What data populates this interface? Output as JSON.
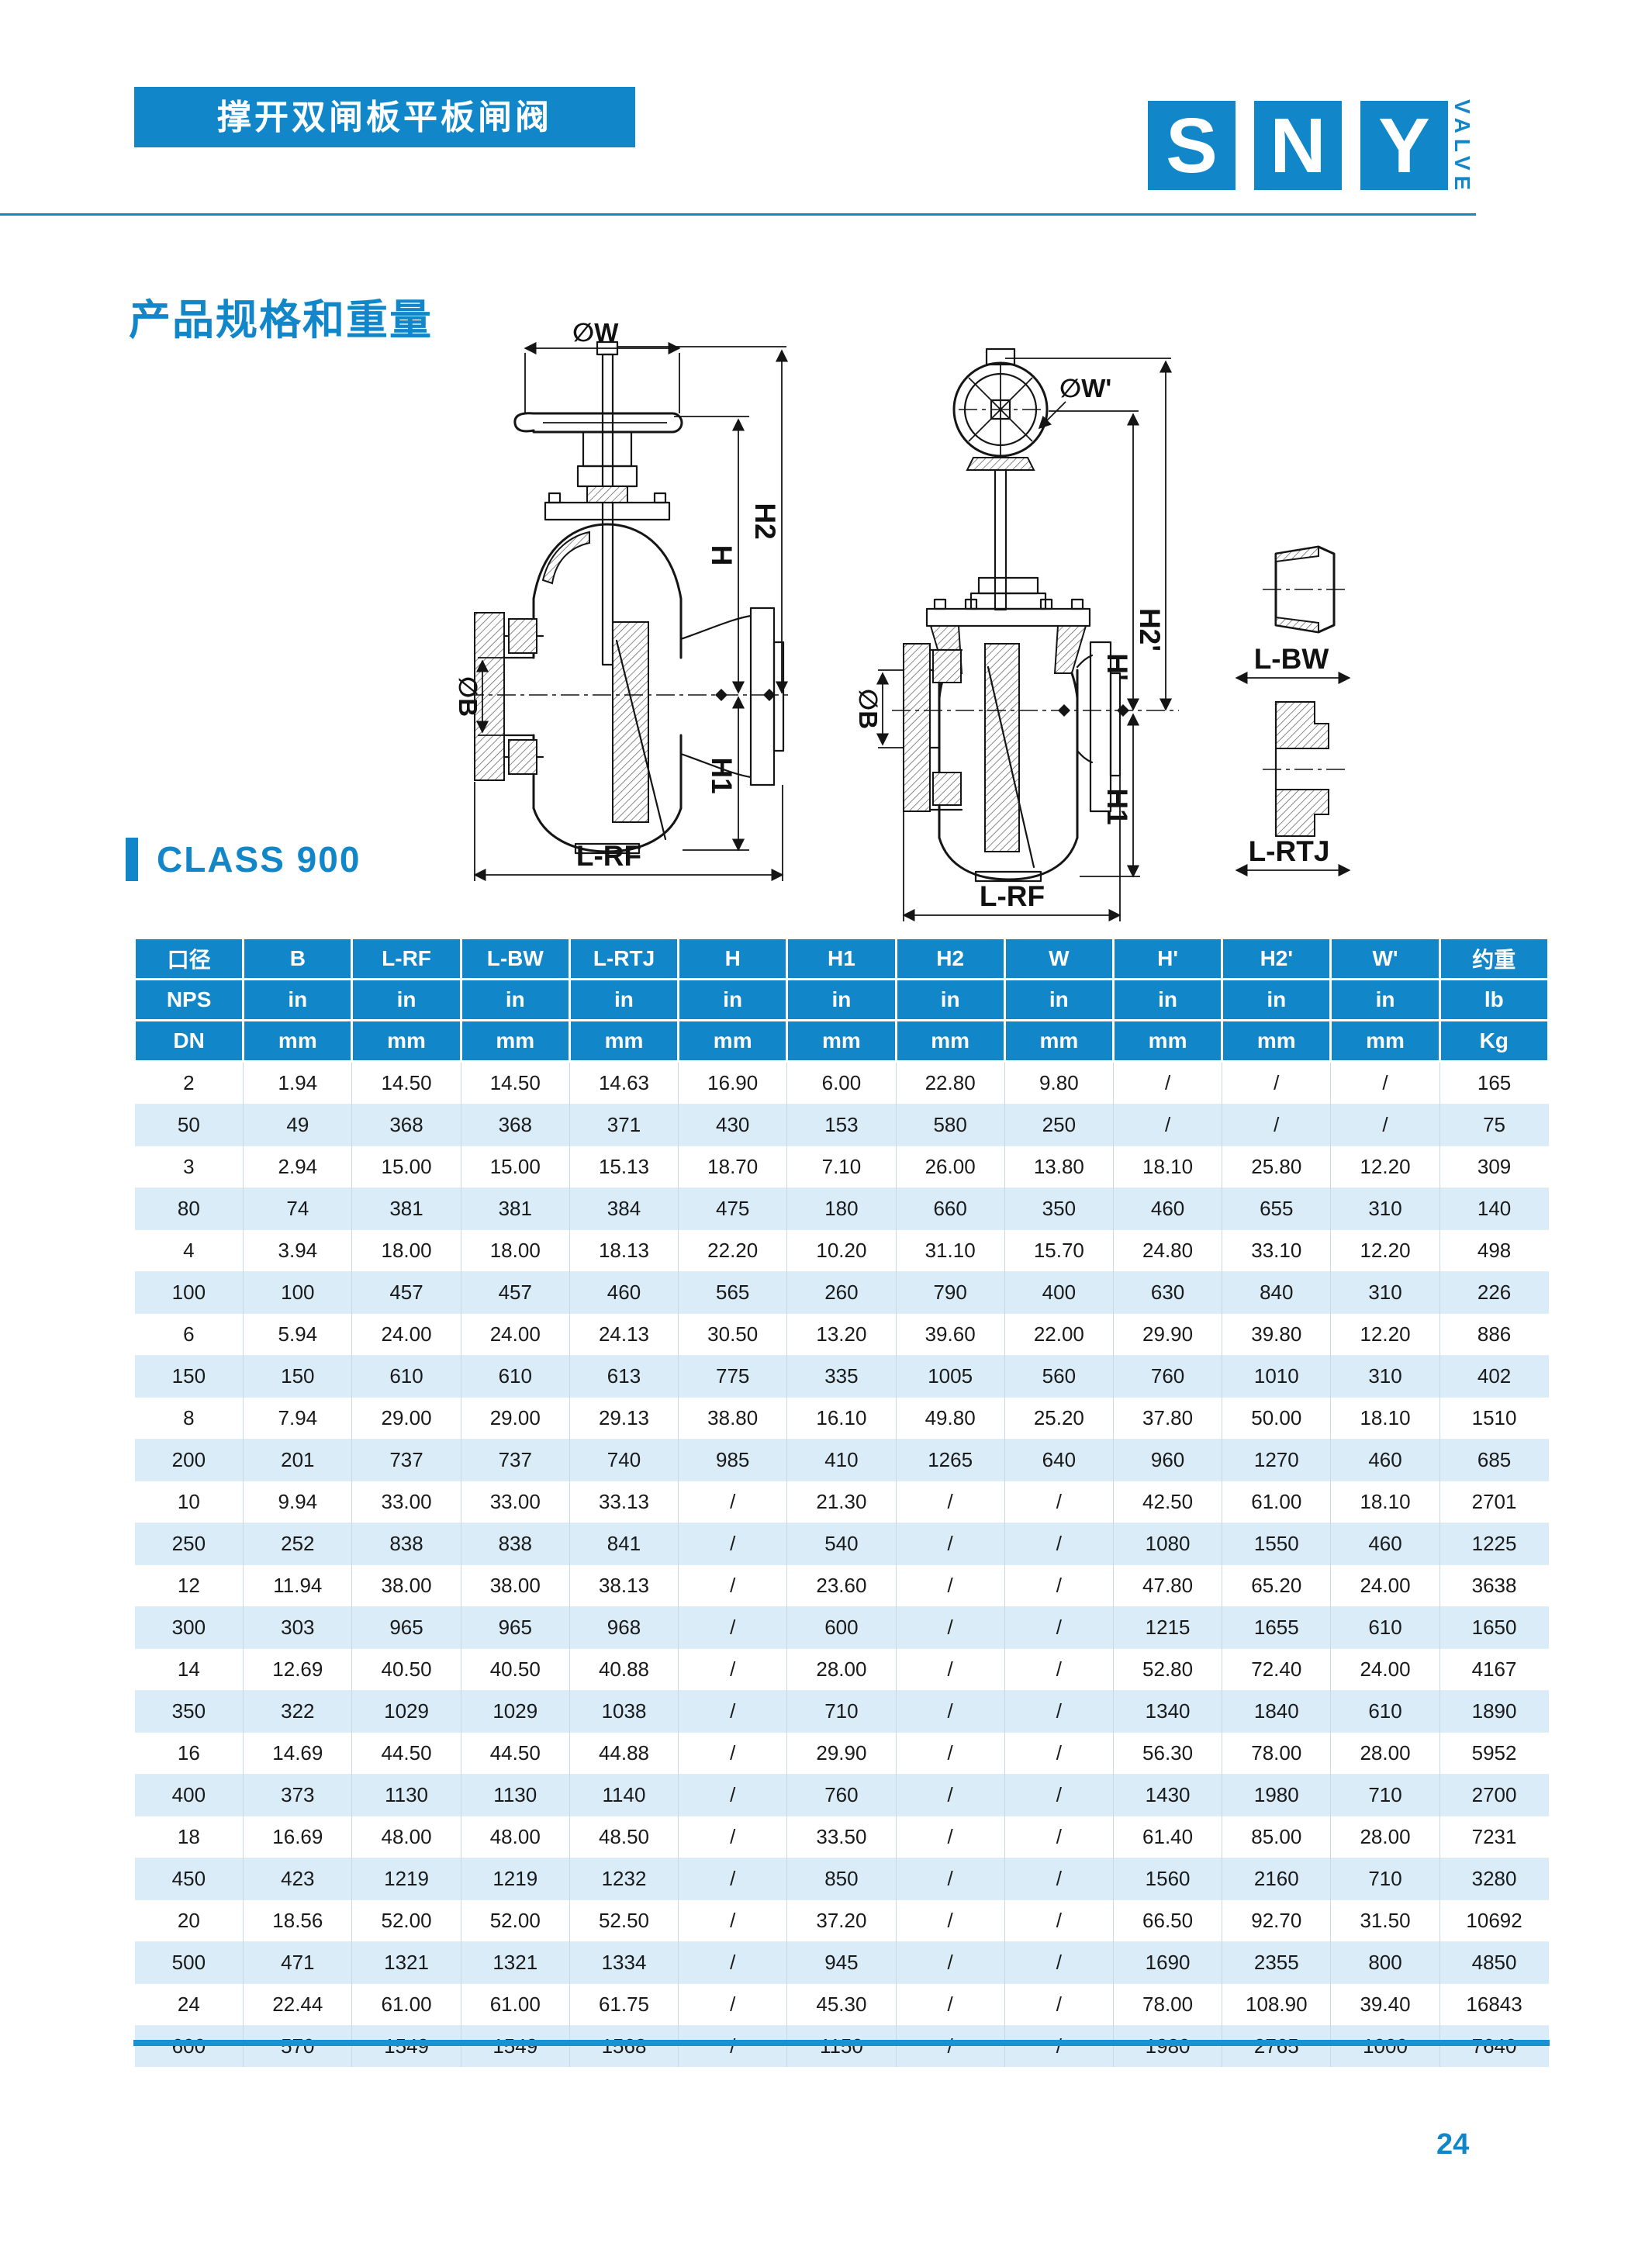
{
  "header": {
    "title": "撑开双闸板平板闸阀",
    "logo": {
      "letter1": "S",
      "letter2": "N",
      "letter3": "Y",
      "tagline": "VALVE"
    }
  },
  "section": {
    "heading": "产品规格和重量",
    "class_label": "CLASS 900"
  },
  "diagrams": {
    "handwheel_valve": {
      "dim_w": "∅W",
      "dim_h2": "H2",
      "dim_h": "H",
      "dim_b": "∅B",
      "dim_h1": "H1",
      "dim_lrf": "L-RF"
    },
    "gear_valve": {
      "dim_w": "∅W'",
      "dim_h2": "H2'",
      "dim_h": "H'",
      "dim_b": "∅B",
      "dim_h1": "H1",
      "dim_lrf": "L-RF"
    },
    "end_details": {
      "bw": "L-BW",
      "rtj": "L-RTJ"
    }
  },
  "colors": {
    "brand_blue": "#1187c9",
    "row_alt": "#d9ecf8"
  },
  "table": {
    "columns_row1": [
      "口径",
      "B",
      "L-RF",
      "L-BW",
      "L-RTJ",
      "H",
      "H1",
      "H2",
      "W",
      "H'",
      "H2'",
      "W'",
      "约重"
    ],
    "columns_row2": [
      "NPS",
      "in",
      "in",
      "in",
      "in",
      "in",
      "in",
      "in",
      "in",
      "in",
      "in",
      "in",
      "lb"
    ],
    "columns_row3": [
      "DN",
      "mm",
      "mm",
      "mm",
      "mm",
      "mm",
      "mm",
      "mm",
      "mm",
      "mm",
      "mm",
      "mm",
      "Kg"
    ],
    "rows": [
      [
        "2",
        "1.94",
        "14.50",
        "14.50",
        "14.63",
        "16.90",
        "6.00",
        "22.80",
        "9.80",
        "/",
        "/",
        "/",
        "165"
      ],
      [
        "50",
        "49",
        "368",
        "368",
        "371",
        "430",
        "153",
        "580",
        "250",
        "/",
        "/",
        "/",
        "75"
      ],
      [
        "3",
        "2.94",
        "15.00",
        "15.00",
        "15.13",
        "18.70",
        "7.10",
        "26.00",
        "13.80",
        "18.10",
        "25.80",
        "12.20",
        "309"
      ],
      [
        "80",
        "74",
        "381",
        "381",
        "384",
        "475",
        "180",
        "660",
        "350",
        "460",
        "655",
        "310",
        "140"
      ],
      [
        "4",
        "3.94",
        "18.00",
        "18.00",
        "18.13",
        "22.20",
        "10.20",
        "31.10",
        "15.70",
        "24.80",
        "33.10",
        "12.20",
        "498"
      ],
      [
        "100",
        "100",
        "457",
        "457",
        "460",
        "565",
        "260",
        "790",
        "400",
        "630",
        "840",
        "310",
        "226"
      ],
      [
        "6",
        "5.94",
        "24.00",
        "24.00",
        "24.13",
        "30.50",
        "13.20",
        "39.60",
        "22.00",
        "29.90",
        "39.80",
        "12.20",
        "886"
      ],
      [
        "150",
        "150",
        "610",
        "610",
        "613",
        "775",
        "335",
        "1005",
        "560",
        "760",
        "1010",
        "310",
        "402"
      ],
      [
        "8",
        "7.94",
        "29.00",
        "29.00",
        "29.13",
        "38.80",
        "16.10",
        "49.80",
        "25.20",
        "37.80",
        "50.00",
        "18.10",
        "1510"
      ],
      [
        "200",
        "201",
        "737",
        "737",
        "740",
        "985",
        "410",
        "1265",
        "640",
        "960",
        "1270",
        "460",
        "685"
      ],
      [
        "10",
        "9.94",
        "33.00",
        "33.00",
        "33.13",
        "/",
        "21.30",
        "/",
        "/",
        "42.50",
        "61.00",
        "18.10",
        "2701"
      ],
      [
        "250",
        "252",
        "838",
        "838",
        "841",
        "/",
        "540",
        "/",
        "/",
        "1080",
        "1550",
        "460",
        "1225"
      ],
      [
        "12",
        "11.94",
        "38.00",
        "38.00",
        "38.13",
        "/",
        "23.60",
        "/",
        "/",
        "47.80",
        "65.20",
        "24.00",
        "3638"
      ],
      [
        "300",
        "303",
        "965",
        "965",
        "968",
        "/",
        "600",
        "/",
        "/",
        "1215",
        "1655",
        "610",
        "1650"
      ],
      [
        "14",
        "12.69",
        "40.50",
        "40.50",
        "40.88",
        "/",
        "28.00",
        "/",
        "/",
        "52.80",
        "72.40",
        "24.00",
        "4167"
      ],
      [
        "350",
        "322",
        "1029",
        "1029",
        "1038",
        "/",
        "710",
        "/",
        "/",
        "1340",
        "1840",
        "610",
        "1890"
      ],
      [
        "16",
        "14.69",
        "44.50",
        "44.50",
        "44.88",
        "/",
        "29.90",
        "/",
        "/",
        "56.30",
        "78.00",
        "28.00",
        "5952"
      ],
      [
        "400",
        "373",
        "1130",
        "1130",
        "1140",
        "/",
        "760",
        "/",
        "/",
        "1430",
        "1980",
        "710",
        "2700"
      ],
      [
        "18",
        "16.69",
        "48.00",
        "48.00",
        "48.50",
        "/",
        "33.50",
        "/",
        "/",
        "61.40",
        "85.00",
        "28.00",
        "7231"
      ],
      [
        "450",
        "423",
        "1219",
        "1219",
        "1232",
        "/",
        "850",
        "/",
        "/",
        "1560",
        "2160",
        "710",
        "3280"
      ],
      [
        "20",
        "18.56",
        "52.00",
        "52.00",
        "52.50",
        "/",
        "37.20",
        "/",
        "/",
        "66.50",
        "92.70",
        "31.50",
        "10692"
      ],
      [
        "500",
        "471",
        "1321",
        "1321",
        "1334",
        "/",
        "945",
        "/",
        "/",
        "1690",
        "2355",
        "800",
        "4850"
      ],
      [
        "24",
        "22.44",
        "61.00",
        "61.00",
        "61.75",
        "/",
        "45.30",
        "/",
        "/",
        "78.00",
        "108.90",
        "39.40",
        "16843"
      ],
      [
        "600",
        "570",
        "1549",
        "1549",
        "1568",
        "/",
        "1150",
        "/",
        "/",
        "1980",
        "2765",
        "1000",
        "7640"
      ]
    ]
  },
  "footer": {
    "page_number": "24"
  }
}
